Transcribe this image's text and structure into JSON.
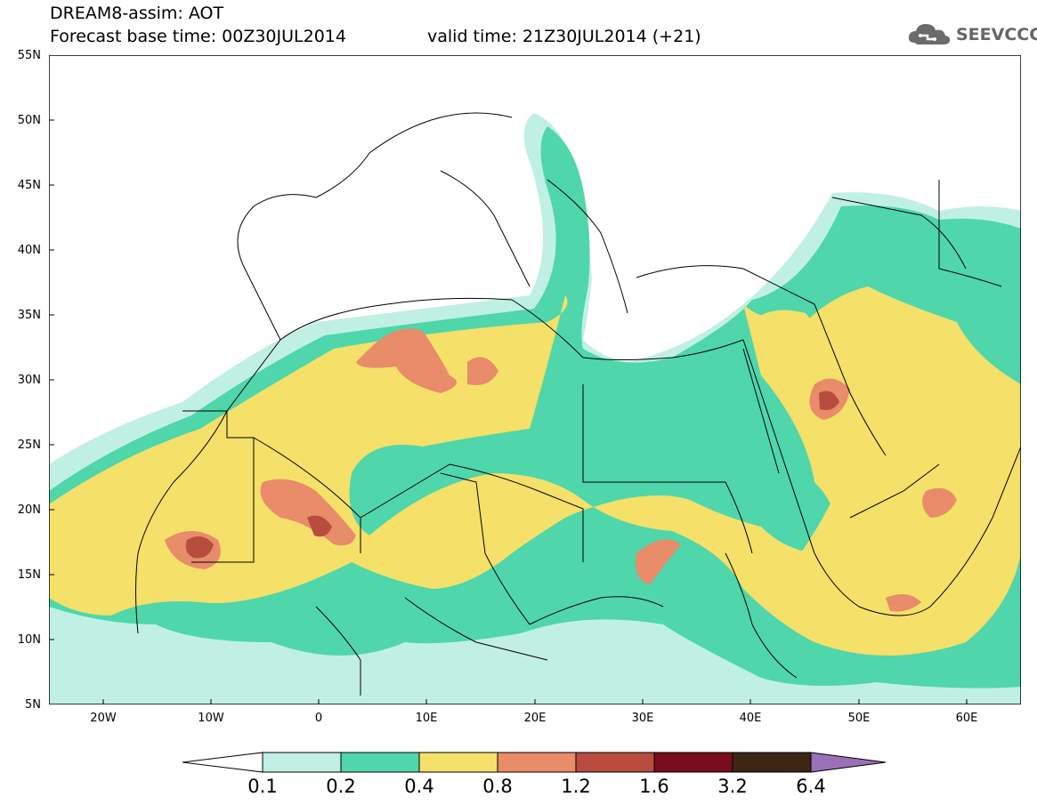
{
  "header": {
    "line1": "DREAM8-assim: AOT",
    "line2": "Forecast base time: 00Z30JUL2014",
    "valid": "valid time: 21Z30JUL2014 (+21)"
  },
  "logo": {
    "text": "SEEVCCC",
    "icon": "cloud-icon"
  },
  "map": {
    "lat_labels": [
      "55N",
      "50N",
      "45N",
      "40N",
      "35N",
      "30N",
      "25N",
      "20N",
      "15N",
      "10N",
      "5N"
    ],
    "lon_labels": [
      "20W",
      "10W",
      "0",
      "10E",
      "20E",
      "30E",
      "40E",
      "50E",
      "60E"
    ],
    "lon_range": [
      -25,
      65
    ],
    "lat_range": [
      5,
      55
    ]
  },
  "legend": {
    "levels": [
      "0.1",
      "0.2",
      "0.4",
      "0.8",
      "1.2",
      "1.6",
      "3.2",
      "6.4"
    ],
    "colors": [
      "#ffffff",
      "#c0f0e4",
      "#4fd6aa",
      "#f5e06a",
      "#e88c6a",
      "#b84c3e",
      "#7a0c20",
      "#3c2614",
      "#9a70b8"
    ]
  }
}
